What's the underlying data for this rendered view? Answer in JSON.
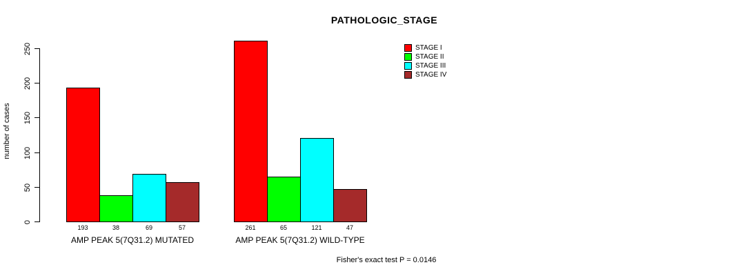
{
  "title": "PATHOLOGIC_STAGE",
  "chart_data": {
    "type": "bar",
    "title": "PATHOLOGIC_STAGE",
    "xlabel": "",
    "ylabel": "number of cases",
    "ylim": [
      0,
      250
    ],
    "yticks": [
      0,
      50,
      100,
      150,
      200,
      250
    ],
    "grid": false,
    "legend_position": "top-right",
    "bar_value_labels_shown": true,
    "categories": [
      "AMP PEAK 5(7Q31.2) MUTATED",
      "AMP PEAK 5(7Q31.2) WILD-TYPE"
    ],
    "series": [
      {
        "name": "STAGE I",
        "color": "#FF0000",
        "values": [
          193,
          261
        ]
      },
      {
        "name": "STAGE II",
        "color": "#00FF00",
        "values": [
          38,
          65
        ]
      },
      {
        "name": "STAGE III",
        "color": "#00FFFF",
        "values": [
          69,
          121
        ]
      },
      {
        "name": "STAGE IV",
        "color": "#A52A2A",
        "values": [
          57,
          47
        ]
      }
    ],
    "annotation": "Fisher's exact test P = 0.0146"
  }
}
